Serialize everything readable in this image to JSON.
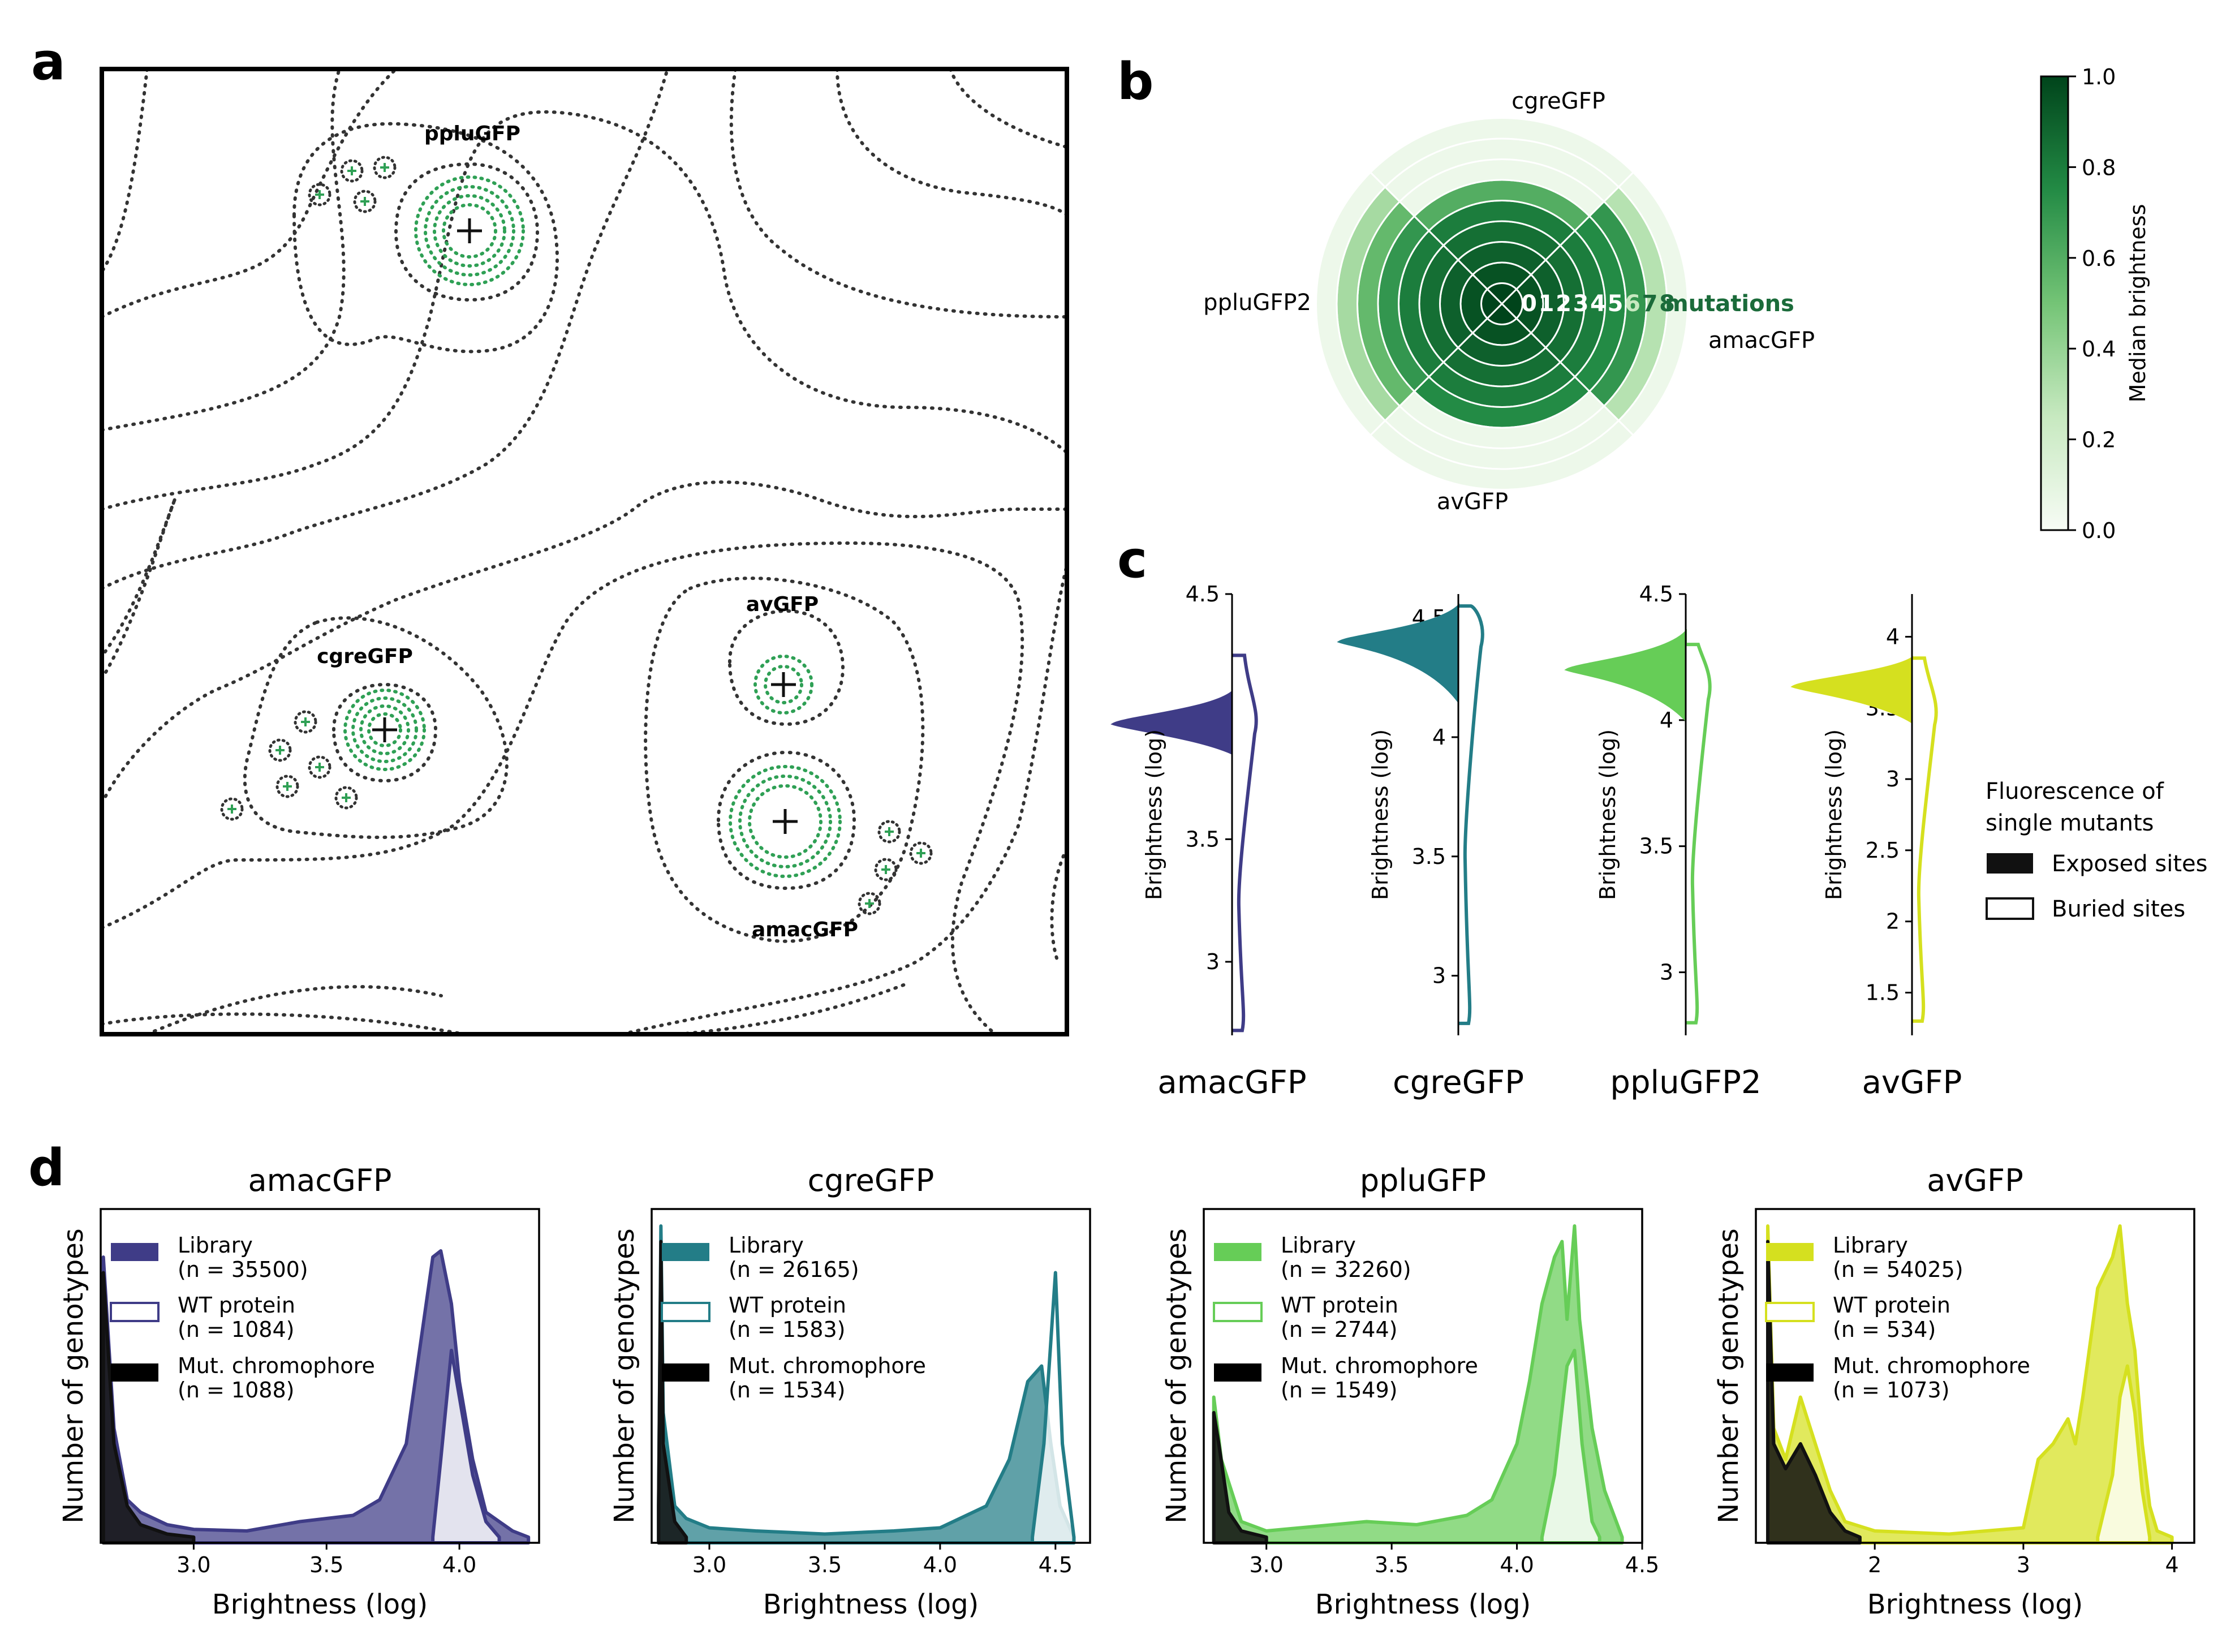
{
  "panel_letters": {
    "a": "a",
    "b": "b",
    "c": "c",
    "d": "d"
  },
  "colors": {
    "amacGFP": "#3f3c87",
    "cgreGFP": "#237d87",
    "ppluGFP": "#66cd57",
    "avGFP": "#d5e01f",
    "colorbar_max": "#00441b",
    "colorbar_min": "#f7fcf5",
    "contour_dark": "#333333",
    "contour_green": "#2fa055"
  },
  "panel_a": {
    "peaks": [
      {
        "name": "ppluGFP"
      },
      {
        "name": "cgreGFP"
      },
      {
        "name": "avGFP"
      },
      {
        "name": "amacGFP"
      }
    ]
  },
  "chart_data": [
    {
      "panel": "b",
      "type": "polar-heatmap",
      "directions": [
        "cgreGFP",
        "amacGFP",
        "avGFP",
        "ppluGFP2"
      ],
      "radial_labels": [
        "0",
        "1",
        "2",
        "3",
        "4",
        "5",
        "6",
        "7",
        "8"
      ],
      "radial_suffix": " mutations",
      "median_brightness": {
        "cgreGFP": [
          1.0,
          0.95,
          0.9,
          0.85,
          0.8,
          0.6,
          0.05,
          0.05,
          0.05
        ],
        "amacGFP": [
          1.0,
          0.95,
          0.9,
          0.85,
          0.8,
          0.75,
          0.7,
          0.3,
          0.05
        ],
        "avGFP": [
          1.0,
          0.95,
          0.9,
          0.85,
          0.8,
          0.75,
          0.05,
          0.05,
          0.05
        ],
        "ppluGFP2": [
          1.0,
          0.95,
          0.9,
          0.85,
          0.8,
          0.7,
          0.55,
          0.35,
          0.05
        ]
      },
      "colorbar": {
        "label": "Median brightness",
        "ticks": [
          "0.0",
          "0.2",
          "0.4",
          "0.6",
          "0.8",
          "1.0"
        ],
        "range": [
          0,
          1
        ]
      }
    },
    {
      "panel": "c",
      "type": "split-violin",
      "ylabel": "Brightness (log)",
      "legend": {
        "title": "Fluorescence of\nsingle mutants",
        "exposed": "Exposed sites",
        "buried": "Buried sites"
      },
      "proteins": [
        {
          "name": "amacGFP",
          "ylim": [
            2.7,
            4.5
          ],
          "ticks": [
            "3",
            "3.5",
            "4",
            "4.5"
          ],
          "tick_values": [
            3,
            3.5,
            4,
            4.5
          ],
          "exposed_peak": 3.97,
          "exposed_range": [
            3.85,
            4.1
          ],
          "buried_range": [
            2.72,
            4.25
          ],
          "buried_peak": 4.0
        },
        {
          "name": "cgreGFP",
          "ylim": [
            2.75,
            4.6
          ],
          "ticks": [
            "3",
            "3.5",
            "4",
            "4.5"
          ],
          "tick_values": [
            3,
            3.5,
            4,
            4.5
          ],
          "exposed_peak": 4.4,
          "exposed_range": [
            4.15,
            4.55
          ],
          "buried_range": [
            2.8,
            4.55
          ],
          "buried_peak": 4.45
        },
        {
          "name": "ppluGFP2",
          "ylim": [
            2.75,
            4.5
          ],
          "ticks": [
            "3",
            "3.5",
            "4",
            "4.5"
          ],
          "tick_values": [
            3,
            3.5,
            4,
            4.5
          ],
          "exposed_peak": 4.2,
          "exposed_range": [
            4.0,
            4.35
          ],
          "buried_range": [
            2.8,
            4.3
          ],
          "buried_peak": 4.15
        },
        {
          "name": "avGFP",
          "ylim": [
            1.2,
            4.3
          ],
          "ticks": [
            "1.5",
            "2",
            "2.5",
            "3",
            "3.5",
            "4"
          ],
          "tick_values": [
            1.5,
            2,
            2.5,
            3,
            3.5,
            4
          ],
          "exposed_peak": 3.65,
          "exposed_range": [
            3.4,
            3.85
          ],
          "buried_range": [
            1.3,
            3.85
          ],
          "buried_peak": 3.5
        }
      ]
    },
    {
      "panel": "d",
      "type": "area",
      "xlabel": "Brightness (log)",
      "ylabel": "Number of genotypes",
      "series_labels": {
        "library": "Library",
        "wt": "WT protein",
        "mut": "Mut. chromophore"
      },
      "charts": [
        {
          "title": "amacGFP",
          "xlim": [
            2.65,
            4.3
          ],
          "ticks": [
            "3.0",
            "3.5",
            "4.0"
          ],
          "tick_values": [
            3.0,
            3.5,
            4.0
          ],
          "n_library": "(n = 35500)",
          "n_wt": "(n = 1084)",
          "n_mut": "(n = 1088)",
          "library": [
            [
              2.66,
              0.9
            ],
            [
              2.7,
              0.35
            ],
            [
              2.75,
              0.12
            ],
            [
              2.8,
              0.08
            ],
            [
              2.9,
              0.04
            ],
            [
              3.0,
              0.025
            ],
            [
              3.2,
              0.02
            ],
            [
              3.4,
              0.05
            ],
            [
              3.5,
              0.06
            ],
            [
              3.6,
              0.07
            ],
            [
              3.7,
              0.12
            ],
            [
              3.8,
              0.3
            ],
            [
              3.85,
              0.6
            ],
            [
              3.9,
              0.9
            ],
            [
              3.93,
              0.92
            ],
            [
              3.97,
              0.75
            ],
            [
              4.0,
              0.5
            ],
            [
              4.05,
              0.25
            ],
            [
              4.1,
              0.08
            ],
            [
              4.2,
              0.02
            ],
            [
              4.26,
              0.0
            ]
          ],
          "wt": [
            [
              3.9,
              0.0
            ],
            [
              3.93,
              0.25
            ],
            [
              3.97,
              0.6
            ],
            [
              4.0,
              0.45
            ],
            [
              4.05,
              0.2
            ],
            [
              4.1,
              0.05
            ],
            [
              4.15,
              0.0
            ]
          ],
          "mut": [
            [
              2.66,
              0.85
            ],
            [
              2.7,
              0.3
            ],
            [
              2.75,
              0.1
            ],
            [
              2.8,
              0.04
            ],
            [
              2.9,
              0.01
            ],
            [
              3.0,
              0.0
            ]
          ]
        },
        {
          "title": "cgreGFP",
          "xlim": [
            2.75,
            4.65
          ],
          "ticks": [
            "3.0",
            "3.5",
            "4.0",
            "4.5"
          ],
          "tick_values": [
            3.0,
            3.5,
            4.0,
            4.5
          ],
          "n_library": "(n = 26165)",
          "n_wt": "(n = 1583)",
          "n_mut": "(n = 1534)",
          "library": [
            [
              2.78,
              0.1
            ],
            [
              2.79,
              1.0
            ],
            [
              2.8,
              0.4
            ],
            [
              2.85,
              0.1
            ],
            [
              2.9,
              0.06
            ],
            [
              3.0,
              0.03
            ],
            [
              3.2,
              0.02
            ],
            [
              3.5,
              0.01
            ],
            [
              3.8,
              0.02
            ],
            [
              4.0,
              0.03
            ],
            [
              4.2,
              0.1
            ],
            [
              4.3,
              0.25
            ],
            [
              4.38,
              0.5
            ],
            [
              4.44,
              0.55
            ],
            [
              4.48,
              0.3
            ],
            [
              4.52,
              0.1
            ],
            [
              4.58,
              0.0
            ]
          ],
          "wt": [
            [
              4.4,
              0.0
            ],
            [
              4.45,
              0.3
            ],
            [
              4.5,
              0.85
            ],
            [
              4.53,
              0.3
            ],
            [
              4.58,
              0.0
            ]
          ],
          "mut": [
            [
              2.78,
              0.1
            ],
            [
              2.79,
              0.95
            ],
            [
              2.8,
              0.3
            ],
            [
              2.85,
              0.05
            ],
            [
              2.9,
              0.0
            ]
          ]
        },
        {
          "title": "ppluGFP",
          "xlim": [
            2.75,
            4.5
          ],
          "ticks": [
            "3.0",
            "3.5",
            "4.0",
            "4.5"
          ],
          "tick_values": [
            3.0,
            3.5,
            4.0,
            4.5
          ],
          "n_library": "(n = 32260)",
          "n_wt": "(n = 2744)",
          "n_mut": "(n = 1549)",
          "library": [
            [
              2.79,
              0.45
            ],
            [
              2.82,
              0.25
            ],
            [
              2.9,
              0.05
            ],
            [
              3.0,
              0.02
            ],
            [
              3.4,
              0.05
            ],
            [
              3.6,
              0.04
            ],
            [
              3.8,
              0.07
            ],
            [
              3.9,
              0.12
            ],
            [
              4.0,
              0.3
            ],
            [
              4.05,
              0.5
            ],
            [
              4.1,
              0.75
            ],
            [
              4.15,
              0.9
            ],
            [
              4.18,
              0.95
            ],
            [
              4.2,
              0.7
            ],
            [
              4.23,
              1.0
            ],
            [
              4.25,
              0.7
            ],
            [
              4.3,
              0.35
            ],
            [
              4.35,
              0.15
            ],
            [
              4.42,
              0.0
            ]
          ],
          "wt": [
            [
              4.1,
              0.0
            ],
            [
              4.15,
              0.2
            ],
            [
              4.2,
              0.55
            ],
            [
              4.23,
              0.6
            ],
            [
              4.26,
              0.3
            ],
            [
              4.3,
              0.05
            ],
            [
              4.33,
              0.0
            ]
          ],
          "mut": [
            [
              2.79,
              0.4
            ],
            [
              2.81,
              0.3
            ],
            [
              2.85,
              0.08
            ],
            [
              2.9,
              0.02
            ],
            [
              3.0,
              0.0
            ]
          ]
        },
        {
          "title": "avGFP",
          "xlim": [
            1.2,
            4.15
          ],
          "ticks": [
            "2",
            "3",
            "4"
          ],
          "tick_values": [
            2,
            3,
            4
          ],
          "n_library": "(n = 54025)",
          "n_wt": "(n = 534)",
          "n_mut": "(n = 1073)",
          "library": [
            [
              1.28,
              1.0
            ],
            [
              1.32,
              0.35
            ],
            [
              1.4,
              0.25
            ],
            [
              1.5,
              0.45
            ],
            [
              1.6,
              0.3
            ],
            [
              1.7,
              0.15
            ],
            [
              1.8,
              0.05
            ],
            [
              2.0,
              0.02
            ],
            [
              2.5,
              0.01
            ],
            [
              3.0,
              0.03
            ],
            [
              3.1,
              0.25
            ],
            [
              3.2,
              0.3
            ],
            [
              3.3,
              0.38
            ],
            [
              3.35,
              0.3
            ],
            [
              3.4,
              0.45
            ],
            [
              3.5,
              0.8
            ],
            [
              3.6,
              0.9
            ],
            [
              3.65,
              1.0
            ],
            [
              3.7,
              0.75
            ],
            [
              3.75,
              0.6
            ],
            [
              3.8,
              0.3
            ],
            [
              3.85,
              0.1
            ],
            [
              3.9,
              0.02
            ],
            [
              4.0,
              0.0
            ]
          ],
          "wt": [
            [
              3.5,
              0.0
            ],
            [
              3.6,
              0.2
            ],
            [
              3.65,
              0.45
            ],
            [
              3.7,
              0.55
            ],
            [
              3.75,
              0.4
            ],
            [
              3.8,
              0.15
            ],
            [
              3.85,
              0.0
            ]
          ],
          "mut": [
            [
              1.28,
              0.95
            ],
            [
              1.32,
              0.3
            ],
            [
              1.4,
              0.22
            ],
            [
              1.5,
              0.3
            ],
            [
              1.6,
              0.2
            ],
            [
              1.7,
              0.08
            ],
            [
              1.8,
              0.02
            ],
            [
              1.9,
              0.0
            ]
          ]
        }
      ]
    }
  ]
}
